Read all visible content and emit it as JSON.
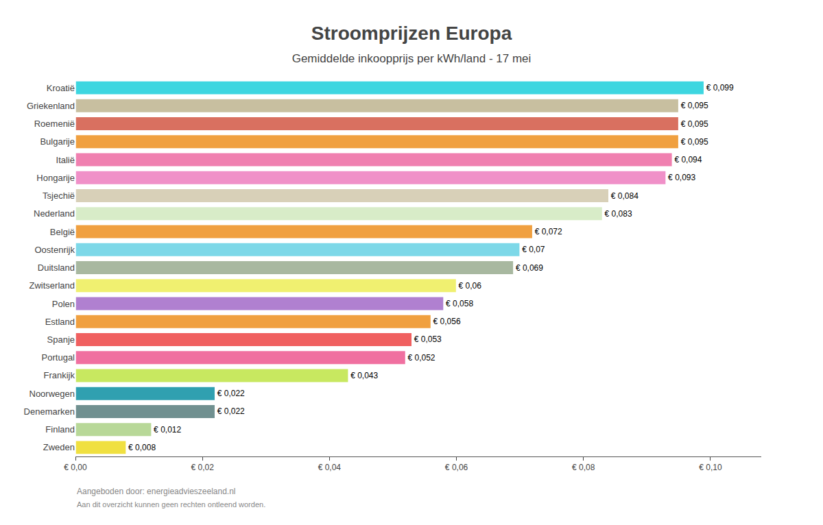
{
  "chart_data": {
    "type": "bar",
    "orientation": "horizontal",
    "title": "Stroomprijzen Europa",
    "subtitle": "Gemiddelde inkoopprijs per kWh/land - 17 mei",
    "categories": [
      "Kroatië",
      "Griekenland",
      "Roemenië",
      "Bulgarije",
      "Italië",
      "Hongarije",
      "Tsjechië",
      "Nederland",
      "België",
      "Oostenrijk",
      "Duitsland",
      "Zwitserland",
      "Polen",
      "Estland",
      "Spanje",
      "Portugal",
      "Frankijk",
      "Noorwegen",
      "Denemarken",
      "Finland",
      "Zweden"
    ],
    "values": [
      0.099,
      0.095,
      0.095,
      0.095,
      0.094,
      0.093,
      0.084,
      0.083,
      0.072,
      0.07,
      0.069,
      0.06,
      0.058,
      0.056,
      0.053,
      0.052,
      0.043,
      0.022,
      0.022,
      0.012,
      0.008
    ],
    "value_labels": [
      "€ 0,099",
      "€ 0,095",
      "€ 0,095",
      "€ 0,095",
      "€ 0,094",
      "€ 0,093",
      "€ 0,084",
      "€ 0,083",
      "€ 0,072",
      "€ 0,07",
      "€ 0,069",
      "€ 0,06",
      "€ 0,058",
      "€ 0,056",
      "€ 0,053",
      "€ 0,052",
      "€ 0,043",
      "€ 0,022",
      "€ 0,022",
      "€ 0,012",
      "€ 0,008"
    ],
    "data_labels": true,
    "colors": [
      "#3DD6E0",
      "#C8BFA0",
      "#D97060",
      "#F0A040",
      "#F080B0",
      "#F090C8",
      "#D8D0B8",
      "#D8ECC8",
      "#F0A040",
      "#7DD8E8",
      "#A8B8A0",
      "#F0F070",
      "#B080D0",
      "#F0A040",
      "#F06060",
      "#F070A0",
      "#C8E860",
      "#30A0B0",
      "#709090",
      "#B8D898",
      "#F0E040"
    ],
    "xlim": [
      0,
      0.108
    ],
    "xticks": [
      {
        "value": 0.0,
        "label": "€ 0,00"
      },
      {
        "value": 0.02,
        "label": "€ 0,02"
      },
      {
        "value": 0.04,
        "label": "€ 0,04"
      },
      {
        "value": 0.06,
        "label": "€ 0,06"
      },
      {
        "value": 0.08,
        "label": "€ 0,08"
      },
      {
        "value": 0.1,
        "label": "€ 0,10"
      }
    ],
    "grid": false,
    "annotations": [
      "Aangeboden door: energieadvieszeeland.nl",
      "Aan dit overzicht kunnen geen rechten ontleend worden."
    ]
  }
}
